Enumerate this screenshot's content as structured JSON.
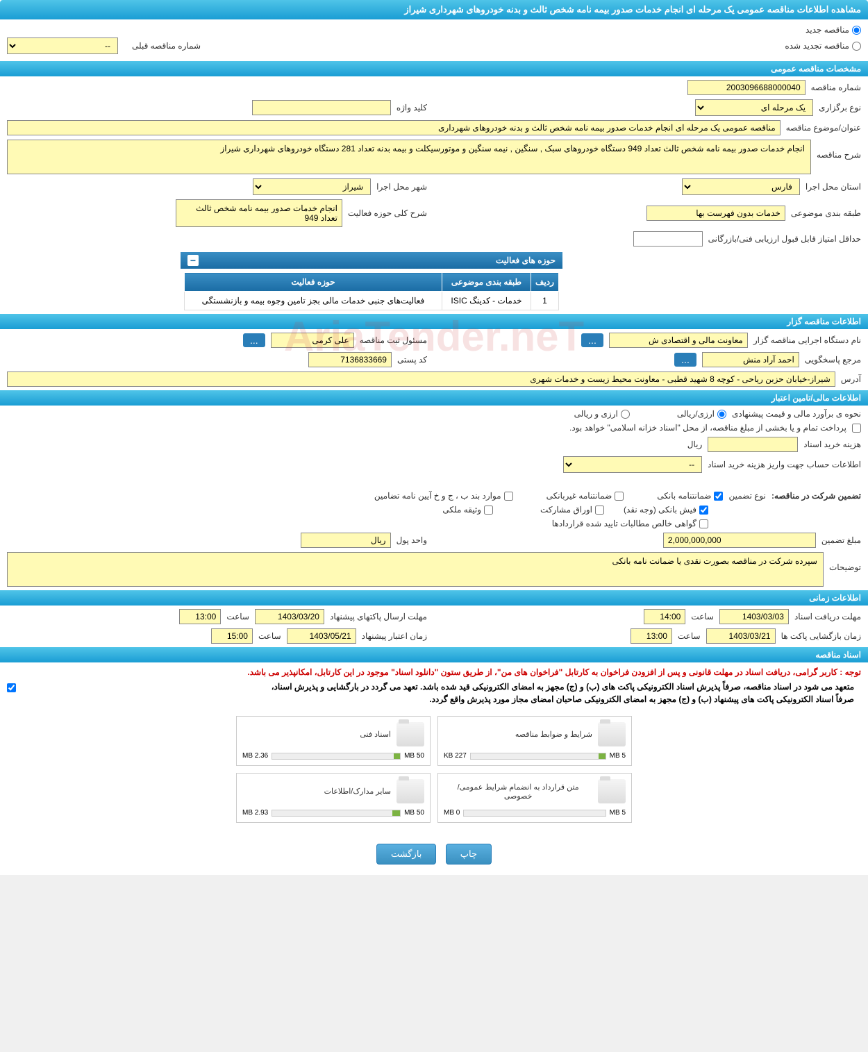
{
  "header": {
    "title": "مشاهده اطلاعات مناقصه عمومی یک مرحله ای انجام خدمات صدور بیمه نامه شخص ثالث و بدنه خودروهای شهرداری شیراز"
  },
  "tender_type": {
    "new_label": "مناقصه جدید",
    "renewed_label": "مناقصه تجدید شده",
    "prev_number_label": "شماره مناقصه قبلی",
    "prev_number_value": "--"
  },
  "general_section": {
    "title": "مشخصات مناقصه عمومی",
    "tender_number_label": "شماره مناقصه",
    "tender_number": "2003096688000040",
    "holding_type_label": "نوع برگزاری",
    "holding_type": "یک مرحله ای",
    "keyword_label": "کلید واژه",
    "keyword": "",
    "subject_label": "عنوان/موضوع مناقصه",
    "subject": "مناقصه عمومی یک مرحله ای انجام خدمات صدور بیمه نامه شخص ثالث و بدنه خودروهای شهرداری",
    "description_label": "شرح مناقصه",
    "description": "انجام خدمات صدور بیمه نامه شخص ثالث تعداد 949 دستگاه خودروهای سبک , سنگین , نیمه سنگین و موتورسیکلت  و بیمه بدنه  تعداد 281 دستگاه خودروهای شهرداری شیراز",
    "province_label": "استان محل اجرا",
    "province": "فارس",
    "city_label": "شهر محل اجرا",
    "city": "شیراز",
    "classification_label": "طبقه بندی موضوعی",
    "classification": "خدمات بدون فهرست بها",
    "activity_desc_label": "شرح کلی حوزه فعالیت",
    "activity_desc": "انجام خدمات صدور بیمه نامه شخص ثالث تعداد 949",
    "min_score_label": "حداقل امتیاز قابل قبول ارزیابی فنی/بازرگانی",
    "min_score": ""
  },
  "activity_table": {
    "title": "حوزه های فعالیت",
    "headers": {
      "row": "ردیف",
      "classification": "طبقه بندی موضوعی",
      "activity": "حوزه فعالیت"
    },
    "rows": [
      {
        "row": "1",
        "classification": "خدمات - کدینگ ISIC",
        "activity": "فعالیت‌های جنبی  خدمات مالی بجز تامین وجوه  بیمه و بازنشستگی"
      }
    ]
  },
  "organizer_section": {
    "title": "اطلاعات مناقصه گزار",
    "org_name_label": "نام دستگاه اجرایی مناقصه گزار",
    "org_name": "معاونت مالی و اقتصادی ش",
    "registrar_label": "مسئول ثبت مناقصه",
    "registrar": "علی کرمی",
    "responder_label": "مرجع پاسخگویی",
    "responder": "احمد آراد منش",
    "postal_label": "کد پستی",
    "postal": "7136833669",
    "address_label": "آدرس",
    "address": "شیراز-خیابان حزبن ریاحی - کوچه 8 شهید قطبی - معاونت محیط زیست و خدمات شهری"
  },
  "financial_section": {
    "title": "اطلاعات مالی/تامین اعتبار",
    "estimate_label": "نحوه ی برآورد مالی و قیمت پیشنهادی",
    "currency_rial": "ارزی/ریالی",
    "currency_foreign": "ارزی و ریالی",
    "treasury_note": "پرداخت تمام و یا بخشی از مبلغ مناقصه، از محل \"اسناد خزانه اسلامی\" خواهد بود.",
    "doc_cost_label": "هزینه خرید اسناد",
    "doc_cost_unit": "ریال",
    "doc_cost": "",
    "account_label": "اطلاعات حساب جهت واریز هزینه خرید اسناد",
    "account_value": "--"
  },
  "guarantee_section": {
    "participate_label": "تضمین شرکت در مناقصه:",
    "type_label": "نوع تضمین",
    "types": {
      "bank": "ضمانتنامه بانکی",
      "nonbank": "ضمانتنامه غیربانکی",
      "regulations": "موارد بند ب ، ج و خ آیین نامه تضامین",
      "receipt": "فیش بانکی (وجه نقد)",
      "securities": "اوراق مشارکت",
      "property": "وثیقه ملکی",
      "contracts": "گواهی خالص مطالبات تایید شده قراردادها"
    },
    "amount_label": "مبلغ تضمین",
    "amount": "2,000,000,000",
    "unit_label": "واحد پول",
    "unit": "ریال",
    "notes_label": "توضیحات",
    "notes": "سپرده شرکت در مناقصه بصورت نقدی یا ضمانت نامه بانکی"
  },
  "time_section": {
    "title": "اطلاعات زمانی",
    "receive_label": "مهلت دریافت اسناد",
    "receive_date": "1403/03/03",
    "receive_time_label": "ساعت",
    "receive_time": "14:00",
    "submit_label": "مهلت ارسال پاکتهای پیشنهاد",
    "submit_date": "1403/03/20",
    "submit_time_label": "ساعت",
    "submit_time": "13:00",
    "open_label": "زمان بازگشایی پاکت ها",
    "open_date": "1403/03/21",
    "open_time_label": "ساعت",
    "open_time": "13:00",
    "validity_label": "زمان اعتبار پیشنهاد",
    "validity_date": "1403/05/21",
    "validity_time_label": "ساعت",
    "validity_time": "15:00"
  },
  "docs_section": {
    "title": "اسناد مناقصه",
    "red_note": "توجه : کاربر گرامی، دریافت اسناد در مهلت قانونی و پس از افزودن فراخوان به کارتابل \"فراخوان های من\"، از طریق ستون \"دانلود اسناد\" موجود در این کارتابل، امکانپذیر می باشد.",
    "black_note1": "متعهد می شود در اسناد مناقصه، صرفاً پذیرش اسناد الکترونیکی پاکت های (ب) و (ج) مجهز به امضای الکترونیکی قید شده باشد. تعهد می گردد در بارگشایی و پذیرش اسناد،",
    "black_note2": "صرفاً اسناد الکترونیکی پاکت های پیشنهاد (ب) و (ج) مجهز به امضای الکترونیکی صاحبان امضای مجاز مورد پذیرش واقع گردد.",
    "docs": [
      {
        "title": "شرایط و ضوابط مناقصه",
        "size": "227 KB",
        "max": "5 MB",
        "fill": 5
      },
      {
        "title": "اسناد فنی",
        "size": "2.36 MB",
        "max": "50 MB",
        "fill": 5
      },
      {
        "title": "متن قرارداد به انضمام شرایط عمومی/خصوصی",
        "size": "0 MB",
        "max": "5 MB",
        "fill": 0
      },
      {
        "title": "سایر مدارک/اطلاعات",
        "size": "2.93 MB",
        "max": "50 MB",
        "fill": 6
      }
    ]
  },
  "buttons": {
    "print": "چاپ",
    "back": "بازگشت",
    "more": "..."
  },
  "watermark": "AriaTender.neT"
}
